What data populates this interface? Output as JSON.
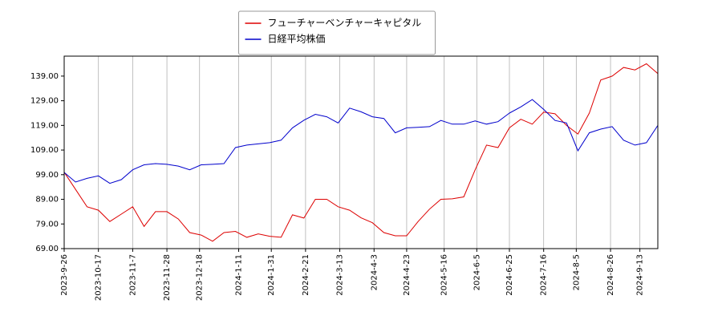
{
  "chart_data": {
    "type": "line",
    "x": [
      "2023-9-26",
      "2023-10-3",
      "2023-10-10",
      "2023-10-17",
      "2023-10-24",
      "2023-10-31",
      "2023-11-7",
      "2023-11-14",
      "2023-11-21",
      "2023-11-28",
      "2023-12-5",
      "2023-12-12",
      "2023-12-19",
      "2023-12-26",
      "2024-1-2",
      "2024-1-9",
      "2024-1-16",
      "2024-1-23",
      "2024-1-30",
      "2024-2-6",
      "2024-2-13",
      "2024-2-20",
      "2024-2-27",
      "2024-3-5",
      "2024-3-12",
      "2024-3-19",
      "2024-3-26",
      "2024-4-2",
      "2024-4-9",
      "2024-4-16",
      "2024-4-23",
      "2024-4-30",
      "2024-5-7",
      "2024-5-14",
      "2024-5-21",
      "2024-5-28",
      "2024-6-4",
      "2024-6-11",
      "2024-6-18",
      "2024-6-25",
      "2024-7-2",
      "2024-7-9",
      "2024-7-16",
      "2024-7-23",
      "2024-7-30",
      "2024-8-6",
      "2024-8-13",
      "2024-8-20",
      "2024-8-27",
      "2024-9-3",
      "2024-9-10",
      "2024-9-17",
      "2024-9-24"
    ],
    "series": [
      {
        "name": "フューチャーベンチャーキャピタル",
        "color": "#dd0000",
        "values": [
          100,
          93,
          86,
          84.6,
          80,
          83,
          86,
          78,
          84,
          84,
          81,
          75.5,
          74.5,
          72,
          75.5,
          76,
          73.6,
          75,
          74,
          73.6,
          82.7,
          81.4,
          89,
          89,
          86,
          84.6,
          81.5,
          79.5,
          75.5,
          74.2,
          74.2,
          80,
          85,
          89,
          89.2,
          90,
          101,
          111,
          110,
          118,
          121.5,
          119.5,
          124.4,
          123.7,
          119,
          115.5,
          124,
          137.4,
          139,
          142.5,
          141.5,
          144,
          140
        ]
      },
      {
        "name": "日経平均株価",
        "color": "#0000cc",
        "values": [
          99.9,
          96,
          97.5,
          98.5,
          95.5,
          97,
          101,
          103,
          103.5,
          103.2,
          102.5,
          101,
          103,
          103.2,
          103.5,
          110,
          111,
          111.5,
          112,
          113,
          118,
          121.1,
          123.5,
          122.5,
          120,
          126,
          124.5,
          122.5,
          121.8,
          116,
          118,
          118.2,
          118.5,
          121,
          119.5,
          119.5,
          120.8,
          119.5,
          120.5,
          124,
          126.5,
          129.5,
          125.5,
          121,
          120,
          108.7,
          116,
          117.5,
          118.5,
          113,
          111,
          112,
          119
        ]
      }
    ],
    "xlim": [
      "2023-9-26",
      "2024-9-24"
    ],
    "xticks": [
      "2023-9-26",
      "2023-10-17",
      "2023-11-7",
      "2023-11-28",
      "2023-12-18",
      "2024-1-11",
      "2024-1-31",
      "2024-2-21",
      "2024-3-13",
      "2024-4-3",
      "2024-4-23",
      "2024-5-16",
      "2024-6-5",
      "2024-6-25",
      "2024-7-16",
      "2024-8-5",
      "2024-8-26",
      "2024-9-13"
    ],
    "ylim": [
      69,
      147.1
    ],
    "yticks": [
      {
        "value": 69,
        "label": "69.00"
      },
      {
        "value": 79,
        "label": "79.00"
      },
      {
        "value": 89,
        "label": "89.00"
      },
      {
        "value": 99,
        "label": "99.00"
      },
      {
        "value": 109,
        "label": "109.00"
      },
      {
        "value": 119,
        "label": "119.00"
      },
      {
        "value": 129,
        "label": "129.00"
      },
      {
        "value": 139,
        "label": "139.00"
      }
    ],
    "grid": {
      "x": true,
      "y": false
    },
    "legend": "upper center"
  }
}
